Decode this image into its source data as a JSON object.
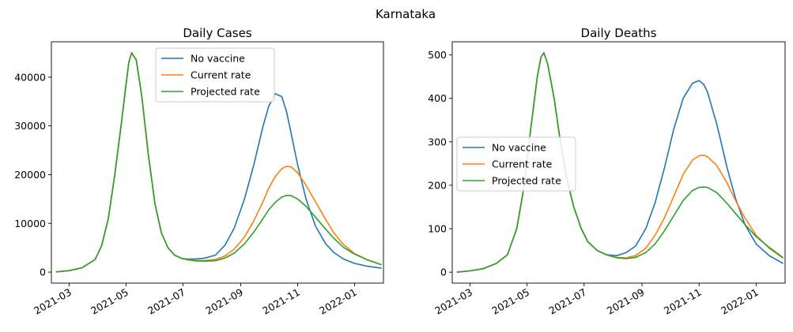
{
  "figure": {
    "suptitle": "Karnataka"
  },
  "chart_data": [
    {
      "type": "line",
      "title": "Daily Cases",
      "xlabel": "",
      "ylabel": "",
      "x_range": [
        "2021-02-10",
        "2022-02-01"
      ],
      "ylim": [
        -2250,
        47250
      ],
      "x_ticks": [
        "2021-03",
        "2021-05",
        "2021-07",
        "2021-09",
        "2021-11",
        "2022-01"
      ],
      "y_ticks": [
        0,
        10000,
        20000,
        30000,
        40000
      ],
      "legend_position": "upper center",
      "grid": false,
      "x": [
        "2021-02-15",
        "2021-03-01",
        "2021-03-15",
        "2021-03-29",
        "2021-04-05",
        "2021-04-12",
        "2021-04-19",
        "2021-04-26",
        "2021-05-01",
        "2021-05-04",
        "2021-05-07",
        "2021-05-12",
        "2021-05-18",
        "2021-05-25",
        "2021-06-01",
        "2021-06-08",
        "2021-06-15",
        "2021-06-22",
        "2021-06-30",
        "2021-07-06",
        "2021-07-15",
        "2021-07-25",
        "2021-08-05",
        "2021-08-15",
        "2021-08-25",
        "2021-09-05",
        "2021-09-15",
        "2021-09-25",
        "2021-10-01",
        "2021-10-08",
        "2021-10-15",
        "2021-10-20",
        "2021-10-25",
        "2021-11-01",
        "2021-11-10",
        "2021-11-20",
        "2021-12-01",
        "2021-12-10",
        "2021-12-20",
        "2022-01-01",
        "2022-01-15",
        "2022-01-30"
      ],
      "series": [
        {
          "name": "No vaccine",
          "color": "#1f77b4",
          "values": [
            50,
            300,
            900,
            2600,
            5500,
            11000,
            20000,
            30500,
            38500,
            43000,
            45000,
            43500,
            36000,
            24000,
            14000,
            8000,
            5000,
            3500,
            2800,
            2700,
            2700,
            2900,
            3500,
            5500,
            9000,
            15000,
            22000,
            30000,
            34000,
            36600,
            36000,
            33000,
            28500,
            22000,
            15000,
            9500,
            5800,
            4000,
            2700,
            1800,
            1200,
            800
          ]
        },
        {
          "name": "Current rate",
          "color": "#ff7f0e",
          "values": [
            50,
            300,
            900,
            2600,
            5500,
            11000,
            20000,
            30500,
            38500,
            43000,
            45000,
            43500,
            36000,
            24000,
            14000,
            8000,
            5000,
            3500,
            2800,
            2600,
            2400,
            2400,
            2600,
            3300,
            4700,
            7200,
            10500,
            14500,
            17200,
            19600,
            21200,
            21700,
            21600,
            20400,
            17800,
            14500,
            10800,
            8000,
            5700,
            3800,
            2500,
            1500
          ]
        },
        {
          "name": "Projected rate",
          "color": "#2ca02c",
          "values": [
            50,
            300,
            900,
            2600,
            5500,
            11000,
            20000,
            30500,
            38500,
            43000,
            45000,
            43500,
            36000,
            24000,
            14000,
            8000,
            5000,
            3500,
            2800,
            2550,
            2300,
            2250,
            2350,
            2900,
            3900,
            5800,
            8200,
            11000,
            12800,
            14300,
            15400,
            15750,
            15700,
            15000,
            13500,
            11300,
            8800,
            6900,
            5100,
            3700,
            2500,
            1500
          ]
        }
      ]
    },
    {
      "type": "line",
      "title": "Daily Deaths",
      "xlabel": "",
      "ylabel": "",
      "x_range": [
        "2021-02-10",
        "2022-02-01"
      ],
      "ylim": [
        -25.2,
        530.2
      ],
      "x_ticks": [
        "2021-03",
        "2021-05",
        "2021-07",
        "2021-09",
        "2021-11",
        "2022-01"
      ],
      "y_ticks": [
        0,
        100,
        200,
        300,
        400,
        500
      ],
      "legend_position": "center left",
      "grid": false,
      "x": [
        "2021-02-15",
        "2021-03-01",
        "2021-03-15",
        "2021-03-29",
        "2021-04-10",
        "2021-04-20",
        "2021-04-28",
        "2021-05-05",
        "2021-05-12",
        "2021-05-16",
        "2021-05-19",
        "2021-05-23",
        "2021-05-30",
        "2021-06-05",
        "2021-06-12",
        "2021-06-20",
        "2021-06-28",
        "2021-07-05",
        "2021-07-15",
        "2021-07-25",
        "2021-08-05",
        "2021-08-15",
        "2021-08-25",
        "2021-09-05",
        "2021-09-15",
        "2021-09-25",
        "2021-10-05",
        "2021-10-15",
        "2021-10-25",
        "2021-11-01",
        "2021-11-06",
        "2021-11-10",
        "2021-11-20",
        "2021-12-01",
        "2021-12-10",
        "2021-12-20",
        "2022-01-01",
        "2022-01-15",
        "2022-01-30"
      ],
      "series": [
        {
          "name": "No vaccine",
          "color": "#1f77b4",
          "values": [
            0,
            3,
            8,
            20,
            40,
            100,
            200,
            330,
            450,
            495,
            505,
            480,
            400,
            310,
            220,
            150,
            100,
            70,
            50,
            40,
            38,
            45,
            60,
            100,
            160,
            240,
            330,
            400,
            435,
            441,
            432,
            415,
            340,
            240,
            170,
            110,
            65,
            38,
            20
          ]
        },
        {
          "name": "Current rate",
          "color": "#ff7f0e",
          "values": [
            0,
            3,
            8,
            20,
            40,
            100,
            200,
            330,
            450,
            495,
            505,
            480,
            400,
            310,
            220,
            150,
            100,
            70,
            50,
            40,
            34,
            33,
            38,
            55,
            85,
            125,
            175,
            225,
            258,
            268,
            269,
            266,
            245,
            205,
            165,
            125,
            85,
            55,
            32
          ]
        },
        {
          "name": "Projected rate",
          "color": "#2ca02c",
          "values": [
            0,
            3,
            8,
            20,
            40,
            100,
            200,
            330,
            450,
            495,
            505,
            480,
            400,
            310,
            220,
            150,
            100,
            70,
            50,
            40,
            33,
            31,
            34,
            45,
            65,
            95,
            130,
            165,
            188,
            195,
            196,
            195,
            183,
            158,
            135,
            110,
            82,
            57,
            33
          ]
        }
      ]
    }
  ]
}
